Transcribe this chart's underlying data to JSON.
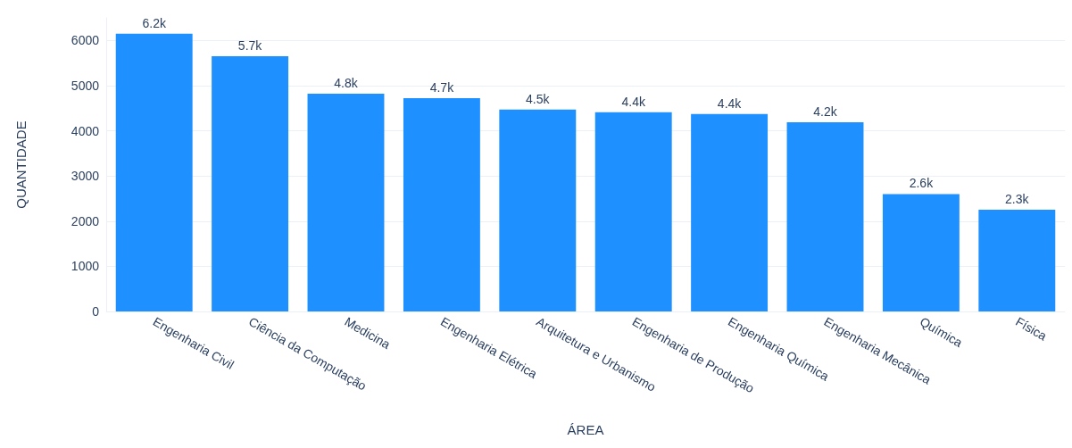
{
  "chart_data": {
    "type": "bar",
    "xlabel": "ÁREA",
    "ylabel": "QUANTIDADE",
    "categories": [
      "Engenharia Civil",
      "Ciência da Computação",
      "Medicina",
      "Engenharia Elétrica",
      "Arquitetura e Urbanismo",
      "Engenharia de Produção",
      "Engenharia Química",
      "Engenharia Mecânica",
      "Química",
      "Física"
    ],
    "values": [
      6150,
      5650,
      4820,
      4720,
      4470,
      4410,
      4370,
      4190,
      2600,
      2250
    ],
    "value_labels": [
      "6.2k",
      "5.7k",
      "4.8k",
      "4.7k",
      "4.5k",
      "4.4k",
      "4.4k",
      "4.2k",
      "2.6k",
      "2.3k"
    ],
    "color": "#1e90ff",
    "ylim": [
      0,
      6500
    ],
    "yticks": [
      0,
      1000,
      2000,
      3000,
      4000,
      5000,
      6000
    ],
    "grid": "y"
  }
}
